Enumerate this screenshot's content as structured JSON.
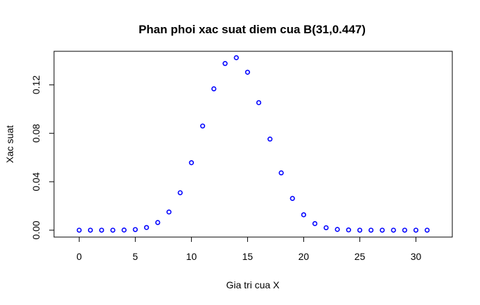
{
  "chart_data": {
    "type": "scatter",
    "title": "Phan phoi xac suat diem cua B(31,0.447)",
    "xlabel": "Gia tri cua X",
    "ylabel": "Xac suat",
    "xlim": [
      -2.24,
      33.24
    ],
    "ylim": [
      -0.0057,
      0.1477
    ],
    "x_ticks": [
      0,
      5,
      10,
      15,
      20,
      25,
      30
    ],
    "x_tick_labels": [
      "0",
      "5",
      "10",
      "15",
      "20",
      "25",
      "30"
    ],
    "y_ticks": [
      0.0,
      0.04,
      0.08,
      0.12
    ],
    "y_tick_labels": [
      "0.00",
      "0.04",
      "0.08",
      "0.12"
    ],
    "grid": false,
    "point_color": "#0000ff",
    "x": [
      0,
      1,
      2,
      3,
      4,
      5,
      6,
      7,
      8,
      9,
      10,
      11,
      12,
      13,
      14,
      15,
      16,
      17,
      18,
      19,
      20,
      21,
      22,
      23,
      24,
      25,
      26,
      27,
      28,
      29,
      30,
      31
    ],
    "y": [
      0.0,
      0.0,
      0.0,
      0.0,
      0.0001,
      0.0005,
      0.0022,
      0.0063,
      0.015,
      0.0309,
      0.0557,
      0.086,
      0.1167,
      0.1376,
      0.1424,
      0.1304,
      0.1053,
      0.0752,
      0.0473,
      0.0262,
      0.0127,
      0.0054,
      0.002,
      0.0006,
      0.0002,
      0.0,
      0.0,
      0.0,
      0.0,
      0.0,
      0.0,
      0.0
    ]
  }
}
